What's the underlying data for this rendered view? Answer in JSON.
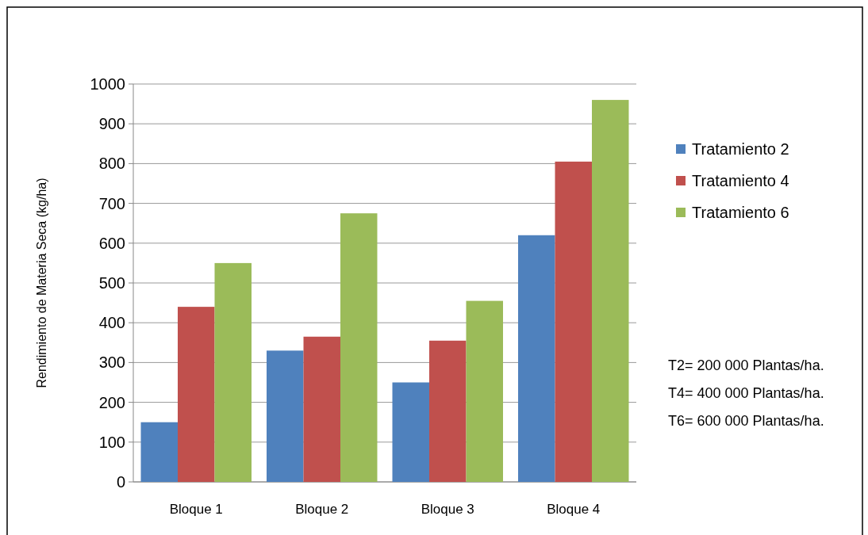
{
  "chart_data": {
    "type": "bar",
    "ylabel": "Rendimiento de Materia Seca (kg/ha)",
    "categories": [
      "Bloque 1",
      "Bloque 2",
      "Bloque 3",
      "Bloque 4"
    ],
    "series": [
      {
        "name": "Tratamiento 2",
        "color": "#4f81bd",
        "values": [
          150,
          330,
          250,
          620
        ]
      },
      {
        "name": "Tratamiento 4",
        "color": "#c0504d",
        "values": [
          440,
          365,
          355,
          805
        ]
      },
      {
        "name": "Tratamiento 6",
        "color": "#9bbb59",
        "values": [
          550,
          675,
          455,
          960
        ]
      }
    ],
    "ylim": [
      0,
      1000
    ],
    "yticks": [
      0,
      100,
      200,
      300,
      400,
      500,
      600,
      700,
      800,
      900,
      1000
    ],
    "grid": "y",
    "legend": "right",
    "annotations": [
      "T2= 200 000 Plantas/ha.",
      "T4= 400 000 Plantas/ha.",
      "T6= 600 000 Plantas/ha."
    ]
  }
}
